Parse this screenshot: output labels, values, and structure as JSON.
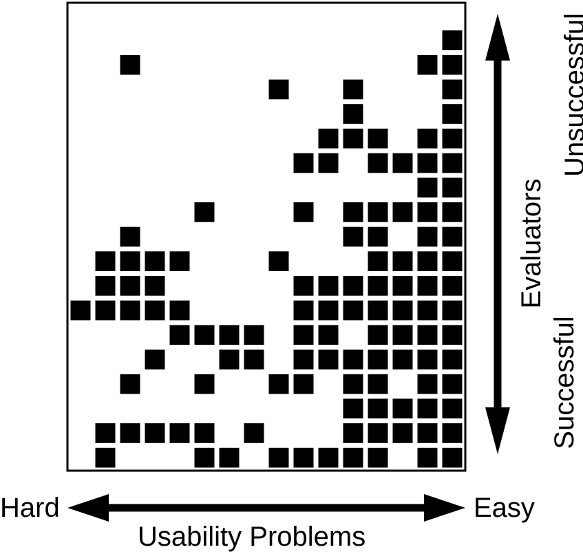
{
  "x_axis": {
    "left_label": "Hard",
    "right_label": "Easy",
    "title": "Usability Problems"
  },
  "y_axis": {
    "top_label": "Unsuccessful",
    "middle_label": "Evaluators",
    "bottom_label": "Successful"
  },
  "colors": {
    "cell": "#000000",
    "background": "#ffffff"
  },
  "chart_data": {
    "type": "heatmap",
    "n_problems": 16,
    "n_evaluators": 19,
    "rows": [
      "................",
      "...............#",
      "..#...........##",
      "........#..#...#",
      "...........#...#",
      "..........###.##",
      ".........##.####",
      "..............##",
      ".....#...#.#####",
      "..#........##.##",
      ".####...#...####",
      ".###.....#######",
      "#####....#######",
      "....####.##.####",
      "...#..##.#######",
      "..#..#..##.##.##",
      "...........#####",
      ".#####.#...#####",
      ".#...##.#####.##"
    ]
  }
}
